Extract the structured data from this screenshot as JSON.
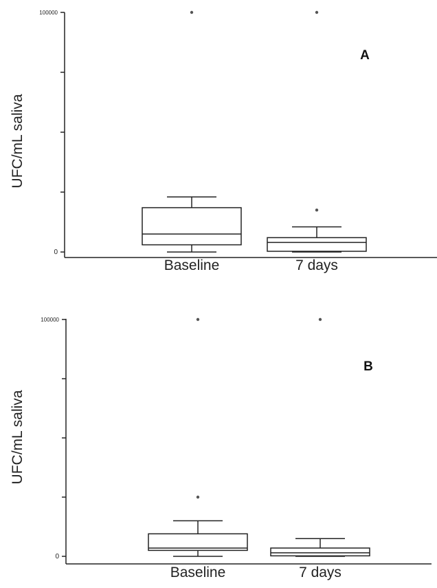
{
  "chart_data": [
    {
      "type": "box",
      "panel_label": "A",
      "ylabel": "UFC/mL saliva",
      "ylim": [
        0,
        100000
      ],
      "y_ticks": [
        {
          "value": 0,
          "label": "0"
        },
        {
          "value": 25000,
          "label": ""
        },
        {
          "value": 50000,
          "label": ""
        },
        {
          "value": 75000,
          "label": ""
        },
        {
          "value": 100000,
          "label": "100000"
        }
      ],
      "categories": [
        "Baseline",
        "7 days"
      ],
      "boxes": [
        {
          "category": "Baseline",
          "whisker_low": 0,
          "q1": 3000,
          "median": 7500,
          "q3": 18500,
          "whisker_high": 23000,
          "outliers": [
            100000
          ]
        },
        {
          "category": "7 days",
          "whisker_low": 0,
          "q1": 300,
          "median": 4000,
          "q3": 6000,
          "whisker_high": 10500,
          "outliers": [
            17500,
            100000
          ]
        }
      ]
    },
    {
      "type": "box",
      "panel_label": "B",
      "ylabel": "UFC/mL saliva",
      "ylim": [
        0,
        100000
      ],
      "y_ticks": [
        {
          "value": 0,
          "label": "0"
        },
        {
          "value": 25000,
          "label": ""
        },
        {
          "value": 50000,
          "label": ""
        },
        {
          "value": 75000,
          "label": ""
        },
        {
          "value": 100000,
          "label": "100000"
        }
      ],
      "categories": [
        "Baseline",
        "7 days"
      ],
      "boxes": [
        {
          "category": "Baseline",
          "whisker_low": 0,
          "q1": 2500,
          "median": 3500,
          "q3": 9500,
          "whisker_high": 15000,
          "outliers": [
            25000,
            100000
          ]
        },
        {
          "category": "7 days",
          "whisker_low": 0,
          "q1": 200,
          "median": 1500,
          "q3": 3500,
          "whisker_high": 7500,
          "outliers": [
            100000
          ]
        }
      ]
    }
  ]
}
